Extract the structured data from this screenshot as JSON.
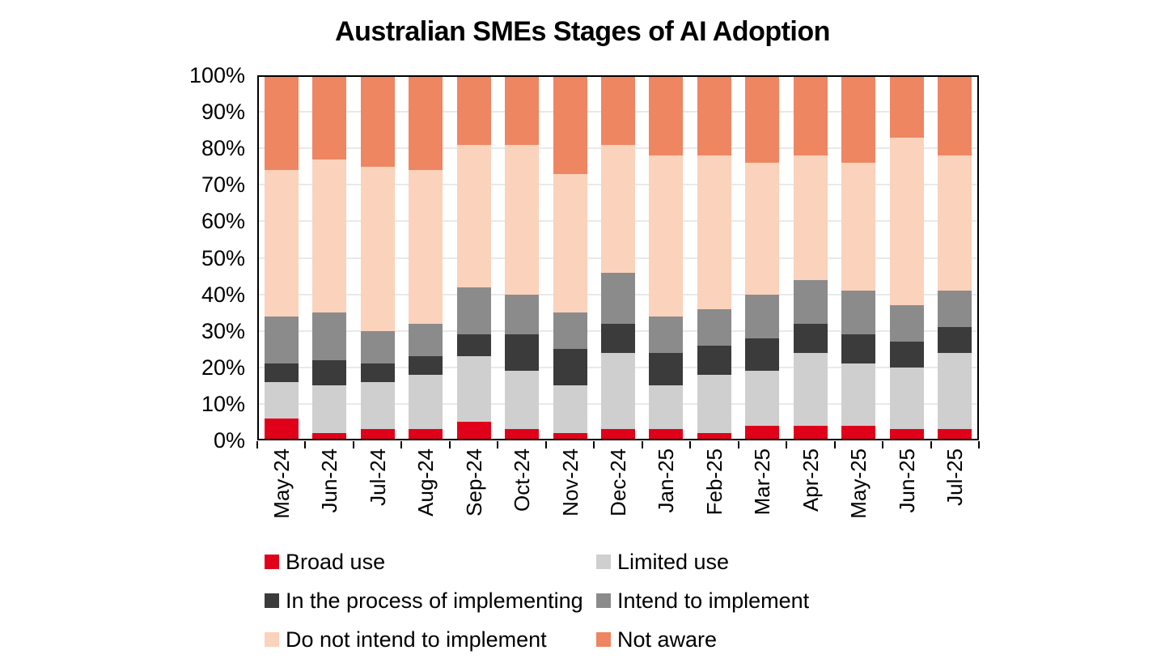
{
  "title": "Australian SMEs Stages of AI Adoption",
  "chart_data": {
    "type": "bar",
    "stacked": true,
    "stacked_total": 100,
    "title": "Australian SMEs Stages of AI Adoption",
    "xlabel": "",
    "ylabel": "",
    "ylim": [
      0,
      100
    ],
    "grid": true,
    "legend_position": "bottom",
    "y_tick_labels": [
      "0%",
      "10%",
      "20%",
      "30%",
      "40%",
      "50%",
      "60%",
      "70%",
      "80%",
      "90%",
      "100%"
    ],
    "categories": [
      "May-24",
      "Jun-24",
      "Jul-24",
      "Aug-24",
      "Sep-24",
      "Oct-24",
      "Nov-24",
      "Dec-24",
      "Jan-25",
      "Feb-25",
      "Mar-25",
      "Apr-25",
      "May-25",
      "Jun-25",
      "Jul-25"
    ],
    "series": [
      {
        "name": "Broad use",
        "color": "#e00019",
        "values": [
          6,
          2,
          3,
          3,
          5,
          3,
          2,
          3,
          3,
          2,
          4,
          4,
          4,
          3,
          3
        ]
      },
      {
        "name": "Limited use",
        "color": "#cfcfcf",
        "values": [
          10,
          13,
          13,
          15,
          18,
          16,
          13,
          21,
          12,
          16,
          15,
          20,
          17,
          17,
          21
        ]
      },
      {
        "name": "In the process of implementing",
        "color": "#3b3b3b",
        "values": [
          5,
          7,
          5,
          5,
          6,
          10,
          10,
          8,
          9,
          8,
          9,
          8,
          8,
          7,
          7
        ]
      },
      {
        "name": "Intend to implement",
        "color": "#8b8b8b",
        "values": [
          13,
          13,
          9,
          9,
          13,
          11,
          10,
          14,
          10,
          10,
          12,
          12,
          12,
          10,
          10
        ]
      },
      {
        "name": "Do not intend to implement",
        "color": "#fbd2bc",
        "values": [
          40,
          42,
          45,
          42,
          39,
          41,
          38,
          35,
          44,
          42,
          36,
          34,
          35,
          46,
          37
        ]
      },
      {
        "name": "Not aware",
        "color": "#ed8661",
        "values": [
          26,
          23,
          25,
          26,
          19,
          19,
          27,
          19,
          22,
          22,
          24,
          22,
          24,
          17,
          22
        ]
      }
    ]
  },
  "colors": {
    "axis": "#000000",
    "gridline": "#e9e9e9",
    "background": "#ffffff",
    "title_text": "#000000"
  }
}
